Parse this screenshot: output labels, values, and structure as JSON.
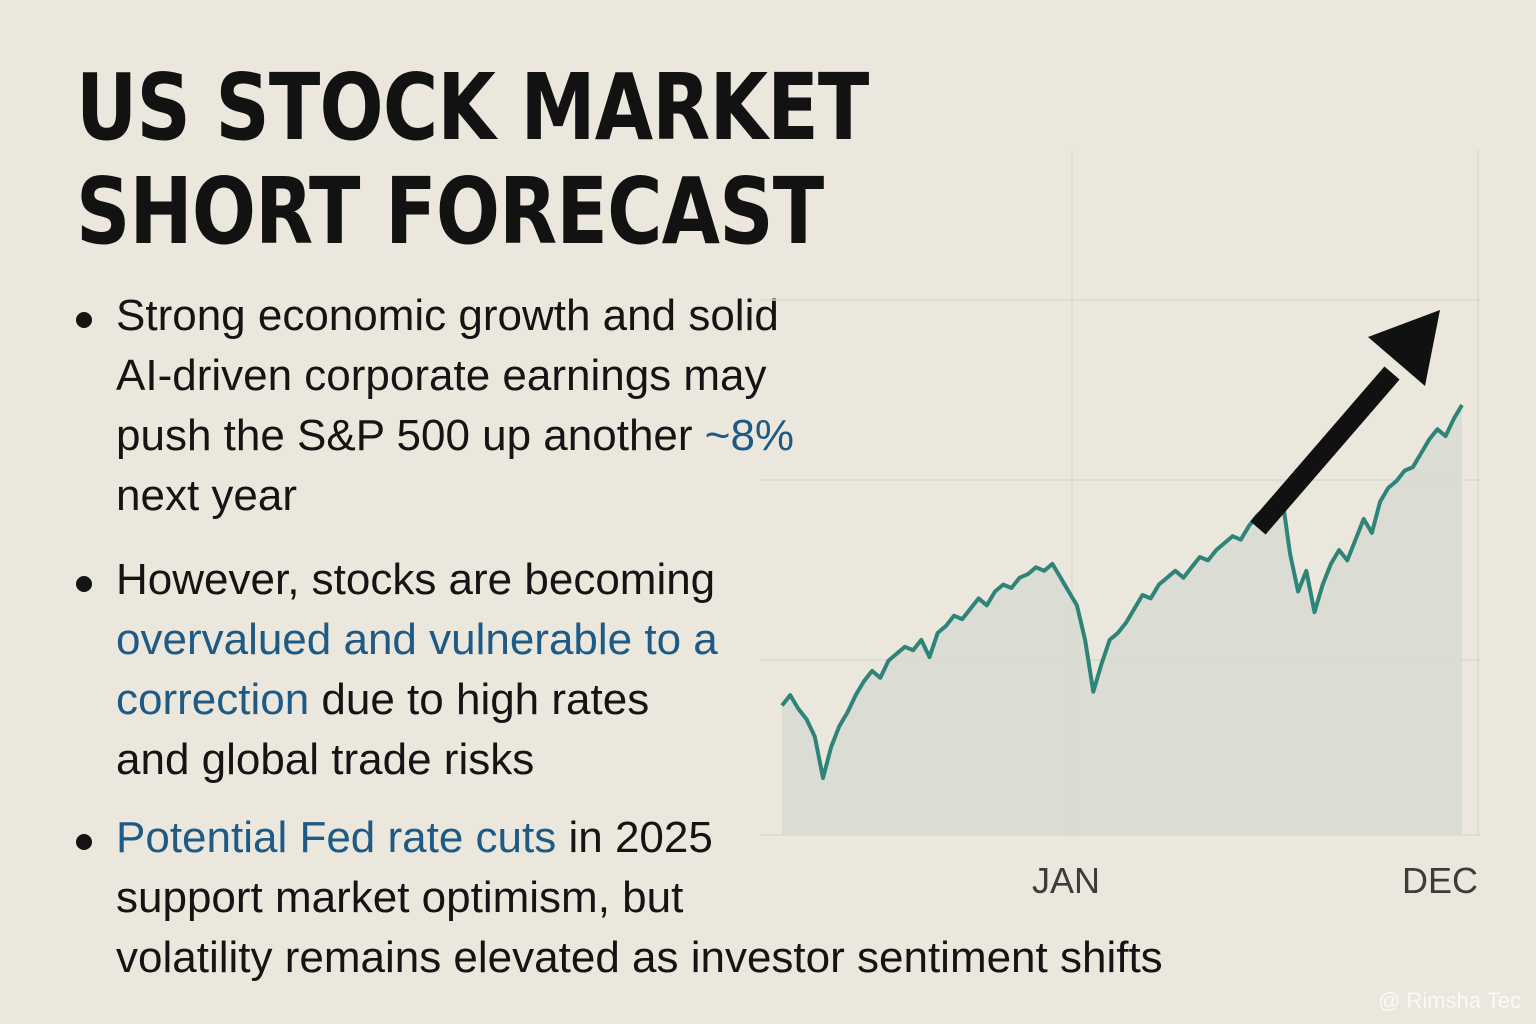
{
  "title": "US STOCK MARKET SHORT FORECAST",
  "bullets": [
    {
      "lines": [
        [
          {
            "t": "Strong economic growth and solid",
            "hl": false
          }
        ],
        [
          {
            "t": "AI-driven corporate earnings may",
            "hl": false
          }
        ],
        [
          {
            "t": "push the S&P 500 up another ",
            "hl": false
          },
          {
            "t": "~8%",
            "hl": true
          }
        ],
        [
          {
            "t": "next year",
            "hl": false
          }
        ]
      ]
    },
    {
      "lines": [
        [
          {
            "t": "However, stocks are becoming",
            "hl": false
          }
        ],
        [
          {
            "t": "overvalued and vulnerable to a",
            "hl": true
          }
        ],
        [
          {
            "t": "correction",
            "hl": true
          },
          {
            "t": " due to high rates",
            "hl": false
          }
        ],
        [
          {
            "t": "and global trade risks",
            "hl": false
          }
        ]
      ]
    },
    {
      "lines": [
        [
          {
            "t": "Potential Fed rate cuts",
            "hl": true
          },
          {
            "t": " in 2025",
            "hl": false
          }
        ],
        [
          {
            "t": "support market optimism, but",
            "hl": false
          }
        ],
        [
          {
            "t": "volatility remains elevated as investor sentiment shifts",
            "hl": false
          }
        ]
      ]
    }
  ],
  "colors": {
    "accent": "#1d5a86",
    "line": "#2e8479",
    "area": "#d9dbd3",
    "arrow": "#111111",
    "background": "#ebe7dd",
    "grid": "#dcd8ce"
  },
  "chart_data": {
    "type": "area",
    "xlabel": "",
    "ylabel": "",
    "x_tick_labels": [
      "JAN",
      "DEC"
    ],
    "grid": true,
    "trend_arrow": "up",
    "series": [
      {
        "values": [
          30,
          33,
          29,
          26,
          21,
          9,
          18,
          24,
          28,
          33,
          37,
          40,
          38,
          43,
          45,
          47,
          46,
          49,
          44,
          51,
          53,
          56,
          55,
          58,
          61,
          59,
          63,
          65,
          64,
          67,
          68,
          70,
          69,
          71,
          67,
          63,
          59,
          49,
          34,
          42,
          49,
          51,
          54,
          58,
          62,
          61,
          65,
          67,
          69,
          67,
          70,
          73,
          72,
          75,
          77,
          79,
          78,
          82,
          85,
          87,
          89,
          91,
          74,
          63,
          69,
          57,
          65,
          71,
          75,
          72,
          78,
          84,
          80,
          89,
          93,
          95,
          98,
          99,
          103,
          107,
          110,
          108,
          113,
          117
        ]
      }
    ]
  },
  "watermark": "@ Rimsha Tec"
}
